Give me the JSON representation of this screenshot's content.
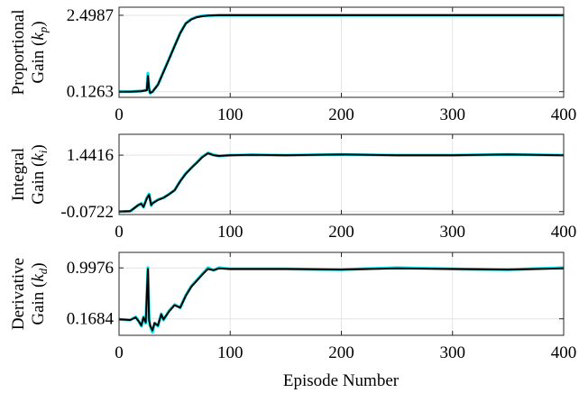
{
  "figure": {
    "xlabel": "Episode Number"
  },
  "chart_data": [
    {
      "type": "line",
      "ylabel_lines": [
        "Proportional",
        "Gain ($k_p$)"
      ],
      "ylabel_display": [
        "Proportional",
        "Gain (",
        "k",
        "p",
        ")"
      ],
      "xlim": [
        0,
        400
      ],
      "ylim": [
        -0.05,
        2.75
      ],
      "xticks": [
        0,
        100,
        200,
        300,
        400
      ],
      "yticks": [
        0.1263,
        2.4987
      ],
      "yticklabels": [
        "0.1263",
        "2.4987"
      ],
      "grid": true,
      "series": [
        {
          "role": "raw",
          "color": "#00e5ee",
          "x": [
            0,
            10,
            20,
            25,
            26,
            27,
            28,
            30,
            35,
            40,
            45,
            50,
            55,
            60,
            65,
            70,
            75,
            80,
            90,
            100,
            150,
            200,
            250,
            300,
            350,
            400
          ],
          "y": [
            0.1263,
            0.1263,
            0.15,
            0.18,
            0.7,
            0.2,
            0.08,
            0.12,
            0.35,
            0.75,
            1.15,
            1.55,
            1.95,
            2.25,
            2.38,
            2.45,
            2.48,
            2.49,
            2.5,
            2.5,
            2.5,
            2.5,
            2.5,
            2.5,
            2.5,
            2.5
          ]
        },
        {
          "role": "smoothed",
          "color": "#000000",
          "x": [
            0,
            10,
            20,
            25,
            26,
            27,
            28,
            30,
            35,
            40,
            45,
            50,
            55,
            60,
            65,
            70,
            75,
            80,
            90,
            100,
            150,
            200,
            250,
            300,
            350,
            400
          ],
          "y": [
            0.1263,
            0.1263,
            0.14,
            0.17,
            0.62,
            0.22,
            0.09,
            0.12,
            0.34,
            0.74,
            1.14,
            1.54,
            1.94,
            2.24,
            2.37,
            2.44,
            2.47,
            2.49,
            2.5,
            2.5,
            2.5,
            2.5,
            2.5,
            2.5,
            2.5,
            2.5
          ]
        }
      ]
    },
    {
      "type": "line",
      "ylabel_lines": [
        "Integral",
        "Gain ($k_i$)"
      ],
      "ylabel_display": [
        "Integral",
        "Gain (",
        "k",
        "i",
        ")"
      ],
      "xlim": [
        0,
        400
      ],
      "ylim": [
        -0.15,
        2.0
      ],
      "xticks": [
        0,
        100,
        200,
        300,
        400
      ],
      "yticks": [
        -0.0722,
        1.4416
      ],
      "yticklabels": [
        "-0.0722",
        "1.4416"
      ],
      "grid": true,
      "series": [
        {
          "role": "raw",
          "color": "#00e5ee",
          "x": [
            0,
            10,
            15,
            17,
            20,
            22,
            25,
            27,
            29,
            30,
            35,
            40,
            45,
            50,
            55,
            60,
            65,
            70,
            75,
            80,
            85,
            90,
            100,
            120,
            150,
            200,
            250,
            300,
            350,
            400
          ],
          "y": [
            -0.0722,
            -0.06,
            0.05,
            0.1,
            0.15,
            0.05,
            0.3,
            0.4,
            0.1,
            0.15,
            0.25,
            0.3,
            0.4,
            0.5,
            0.75,
            0.95,
            1.1,
            1.25,
            1.4,
            1.5,
            1.45,
            1.42,
            1.44,
            1.45,
            1.44,
            1.46,
            1.44,
            1.44,
            1.46,
            1.44
          ]
        },
        {
          "role": "smoothed",
          "color": "#000000",
          "x": [
            0,
            10,
            15,
            17,
            20,
            22,
            25,
            27,
            29,
            30,
            35,
            40,
            45,
            50,
            55,
            60,
            65,
            70,
            75,
            80,
            85,
            90,
            100,
            120,
            150,
            200,
            250,
            300,
            350,
            400
          ],
          "y": [
            -0.0722,
            -0.06,
            0.05,
            0.1,
            0.14,
            0.05,
            0.28,
            0.38,
            0.1,
            0.15,
            0.24,
            0.3,
            0.39,
            0.5,
            0.74,
            0.94,
            1.1,
            1.24,
            1.39,
            1.49,
            1.44,
            1.42,
            1.44,
            1.45,
            1.44,
            1.46,
            1.44,
            1.44,
            1.46,
            1.44
          ]
        }
      ]
    },
    {
      "type": "line",
      "ylabel_lines": [
        "Derivative",
        "Gain ($k_d$)"
      ],
      "ylabel_display": [
        "Derivative",
        "Gain (",
        "k",
        "d",
        ")"
      ],
      "xlim": [
        0,
        400
      ],
      "ylim": [
        -0.1,
        1.25
      ],
      "xticks": [
        0,
        100,
        200,
        300,
        400
      ],
      "yticks": [
        0.1684,
        0.9976
      ],
      "yticklabels": [
        "0.1684",
        "0.9976"
      ],
      "grid": true,
      "series": [
        {
          "role": "raw",
          "color": "#00e5ee",
          "x": [
            0,
            10,
            15,
            18,
            20,
            22,
            24,
            26,
            27,
            28,
            30,
            32,
            35,
            38,
            40,
            45,
            50,
            55,
            60,
            65,
            70,
            75,
            80,
            85,
            90,
            100,
            150,
            200,
            250,
            300,
            350,
            400
          ],
          "y": [
            0.16,
            0.15,
            0.2,
            0.12,
            0.05,
            0.2,
            0.1,
            1.0,
            0.15,
            0.05,
            -0.05,
            0.1,
            0.05,
            0.25,
            0.15,
            0.3,
            0.4,
            0.35,
            0.55,
            0.7,
            0.8,
            0.9,
            1.0,
            0.96,
            1.0,
            0.98,
            0.98,
            0.97,
            1.0,
            0.98,
            0.97,
            1.0
          ]
        },
        {
          "role": "smoothed",
          "color": "#000000",
          "x": [
            0,
            10,
            15,
            18,
            20,
            22,
            24,
            26,
            27,
            28,
            30,
            32,
            35,
            38,
            40,
            45,
            50,
            55,
            60,
            65,
            70,
            75,
            80,
            85,
            90,
            100,
            150,
            200,
            250,
            300,
            350,
            400
          ],
          "y": [
            0.16,
            0.15,
            0.19,
            0.12,
            0.06,
            0.19,
            0.11,
            0.98,
            0.15,
            0.06,
            -0.02,
            0.1,
            0.06,
            0.24,
            0.16,
            0.29,
            0.39,
            0.35,
            0.54,
            0.69,
            0.79,
            0.89,
            0.98,
            0.96,
            0.99,
            0.98,
            0.98,
            0.97,
            0.99,
            0.98,
            0.97,
            0.99
          ]
        }
      ]
    }
  ]
}
